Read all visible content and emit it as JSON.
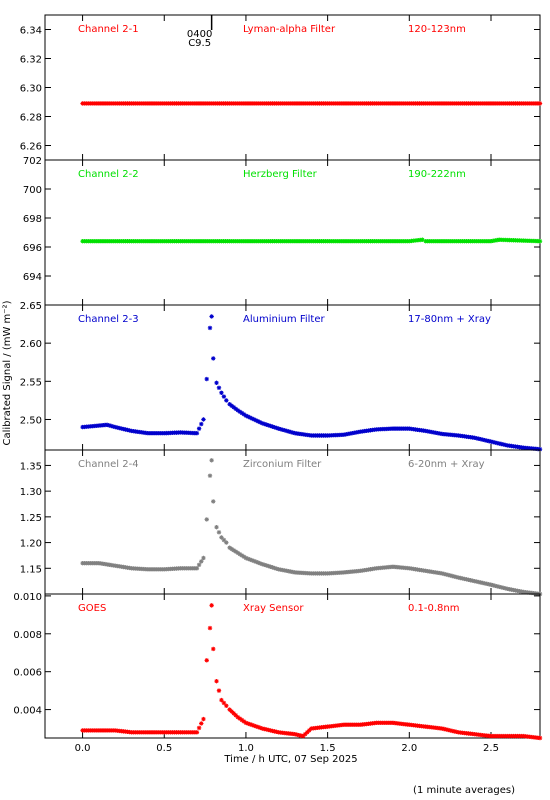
{
  "chart_data": {
    "type": "scatter",
    "marker": "*",
    "x_axis": {
      "label": "Time / h UTC, 07 Sep 2025",
      "range": [
        -0.23,
        2.8
      ],
      "ticks": [
        0.0,
        0.5,
        1.0,
        1.5,
        2.0,
        2.5
      ],
      "tick_labels": [
        "0.0",
        "0.5",
        "1.0",
        "1.5",
        "2.0",
        "2.5"
      ]
    },
    "y_label": "Calibrated Signal / (mW m⁻²)",
    "footnote": "(1 minute averages)",
    "flare_marker": {
      "x": 0.79,
      "label_top": "0400",
      "label_bottom": "C9.5"
    },
    "panels": [
      {
        "channel": "Channel 2-1",
        "filter": "Lyman-alpha Filter",
        "band": "120-123nm",
        "color": "#ff0000",
        "ylim": [
          6.25,
          6.35
        ],
        "yticks": [
          6.26,
          6.28,
          6.3,
          6.32,
          6.34
        ],
        "ytick_labels": [
          "6.26",
          "6.28",
          "6.30",
          "6.32",
          "6.34"
        ],
        "x": [
          0.0,
          0.5,
          1.0,
          1.5,
          2.0,
          2.5,
          2.8
        ],
        "y": [
          6.289,
          6.289,
          6.289,
          6.289,
          6.289,
          6.289,
          6.289
        ]
      },
      {
        "channel": "Channel 2-2",
        "filter": "Herzberg Filter",
        "band": "190-222nm",
        "color": "#00e000",
        "ylim": [
          692,
          702
        ],
        "yticks": [
          694,
          696,
          698,
          700,
          702
        ],
        "ytick_labels": [
          "694",
          "696",
          "698",
          "700",
          "702"
        ],
        "x": [
          0.0,
          0.5,
          1.0,
          1.5,
          2.0,
          2.08,
          2.1,
          2.5,
          2.55,
          2.8
        ],
        "y": [
          696.4,
          696.4,
          696.4,
          696.4,
          696.4,
          696.5,
          696.4,
          696.4,
          696.5,
          696.4
        ]
      },
      {
        "channel": "Channel 2-3",
        "filter": "Aluminium Filter",
        "band": "17-80nm + Xray",
        "color": "#0000cc",
        "ylim": [
          2.46,
          2.65
        ],
        "yticks": [
          2.5,
          2.55,
          2.6,
          2.65
        ],
        "ytick_labels": [
          "2.50",
          "2.55",
          "2.60",
          "2.65"
        ],
        "x": [
          0.0,
          0.1,
          0.15,
          0.2,
          0.3,
          0.4,
          0.5,
          0.6,
          0.7,
          0.74,
          0.76,
          0.78,
          0.79,
          0.8,
          0.82,
          0.85,
          0.88,
          0.9,
          0.95,
          1.0,
          1.1,
          1.2,
          1.3,
          1.4,
          1.5,
          1.6,
          1.7,
          1.8,
          1.9,
          2.0,
          2.1,
          2.2,
          2.3,
          2.4,
          2.5,
          2.6,
          2.7,
          2.8
        ],
        "y": [
          2.49,
          2.492,
          2.493,
          2.49,
          2.485,
          2.482,
          2.482,
          2.483,
          2.482,
          2.5,
          2.553,
          2.62,
          2.635,
          2.58,
          2.548,
          2.535,
          2.525,
          2.52,
          2.512,
          2.505,
          2.495,
          2.488,
          2.482,
          2.479,
          2.479,
          2.48,
          2.484,
          2.487,
          2.488,
          2.488,
          2.485,
          2.481,
          2.479,
          2.476,
          2.471,
          2.466,
          2.463,
          2.461
        ]
      },
      {
        "channel": "Channel 2-4",
        "filter": "Zirconium Filter",
        "band": "6-20nm + Xray",
        "color": "#808080",
        "ylim": [
          1.1,
          1.38
        ],
        "yticks": [
          1.15,
          1.2,
          1.25,
          1.3,
          1.35
        ],
        "ytick_labels": [
          "1.15",
          "1.20",
          "1.25",
          "1.30",
          "1.35"
        ],
        "x": [
          0.0,
          0.1,
          0.2,
          0.3,
          0.4,
          0.5,
          0.6,
          0.7,
          0.74,
          0.76,
          0.78,
          0.79,
          0.8,
          0.82,
          0.85,
          0.88,
          0.9,
          0.95,
          1.0,
          1.1,
          1.2,
          1.3,
          1.4,
          1.5,
          1.6,
          1.7,
          1.8,
          1.9,
          2.0,
          2.1,
          2.2,
          2.3,
          2.4,
          2.5,
          2.6,
          2.7,
          2.8
        ],
        "y": [
          1.16,
          1.16,
          1.155,
          1.15,
          1.148,
          1.148,
          1.15,
          1.15,
          1.17,
          1.245,
          1.33,
          1.36,
          1.28,
          1.23,
          1.21,
          1.2,
          1.19,
          1.18,
          1.17,
          1.158,
          1.148,
          1.142,
          1.14,
          1.14,
          1.142,
          1.145,
          1.15,
          1.153,
          1.15,
          1.145,
          1.14,
          1.132,
          1.125,
          1.118,
          1.11,
          1.104,
          1.1
        ]
      },
      {
        "channel": "GOES",
        "filter": "Xray Sensor",
        "band": "0.1-0.8nm",
        "color": "#ff0000",
        "ylim": [
          0.0025,
          0.0101
        ],
        "yticks": [
          0.004,
          0.006,
          0.008,
          0.01
        ],
        "ytick_labels": [
          "0.004",
          "0.006",
          "0.008",
          "0.010"
        ],
        "x": [
          0.0,
          0.1,
          0.2,
          0.3,
          0.4,
          0.5,
          0.6,
          0.7,
          0.74,
          0.76,
          0.78,
          0.79,
          0.8,
          0.82,
          0.85,
          0.88,
          0.9,
          0.95,
          1.0,
          1.1,
          1.2,
          1.3,
          1.35,
          1.4,
          1.5,
          1.6,
          1.7,
          1.8,
          1.9,
          2.0,
          2.1,
          2.2,
          2.3,
          2.4,
          2.5,
          2.6,
          2.7,
          2.8
        ],
        "y": [
          0.0029,
          0.0029,
          0.0029,
          0.0028,
          0.0028,
          0.0028,
          0.0028,
          0.0028,
          0.0035,
          0.0066,
          0.0083,
          0.0095,
          0.0072,
          0.0055,
          0.0045,
          0.0042,
          0.004,
          0.0036,
          0.0033,
          0.003,
          0.0028,
          0.0027,
          0.0026,
          0.003,
          0.0031,
          0.0032,
          0.0032,
          0.0033,
          0.0033,
          0.0032,
          0.0031,
          0.003,
          0.0028,
          0.0027,
          0.0026,
          0.0026,
          0.0026,
          0.0025
        ]
      }
    ]
  }
}
